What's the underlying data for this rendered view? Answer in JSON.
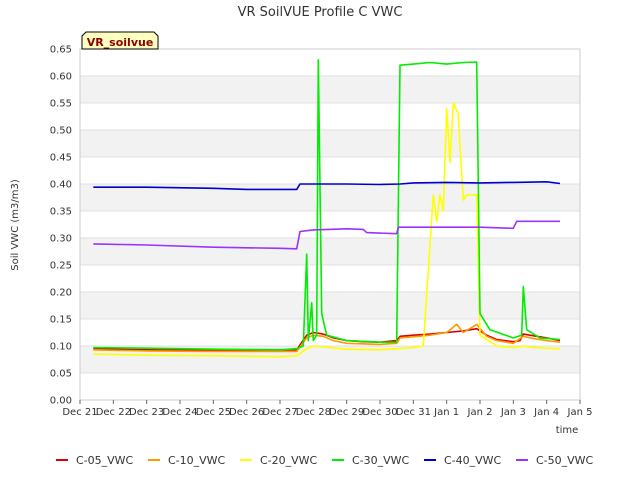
{
  "chart_data": {
    "type": "line",
    "title": "VR SoilVUE Profile C VWC",
    "badge": "VR_soilvue",
    "xlabel": "time",
    "ylabel": "Soil VWC (m3/m3)",
    "ylim": [
      0,
      0.65
    ],
    "xlim": [
      0,
      15
    ],
    "grid": true,
    "legend_position": "bottom",
    "y_ticks": [
      "0.00",
      "0.05",
      "0.10",
      "0.15",
      "0.20",
      "0.25",
      "0.30",
      "0.35",
      "0.40",
      "0.45",
      "0.50",
      "0.55",
      "0.60",
      "0.65"
    ],
    "x_ticks": [
      "Dec 21",
      "Dec 22",
      "Dec 23",
      "Dec 24",
      "Dec 25",
      "Dec 26",
      "Dec 27",
      "Dec 28",
      "Dec 29",
      "Dec 30",
      "Dec 31",
      "Jan 1",
      "Jan 2",
      "Jan 3",
      "Jan 4",
      "Jan 5"
    ],
    "series": [
      {
        "name": "C-05_VWC",
        "color": "#dd0000",
        "points": [
          [
            0.4,
            0.095
          ],
          [
            2,
            0.093
          ],
          [
            4,
            0.092
          ],
          [
            6,
            0.092
          ],
          [
            6.5,
            0.093
          ],
          [
            6.8,
            0.12
          ],
          [
            7.0,
            0.125
          ],
          [
            7.3,
            0.122
          ],
          [
            7.6,
            0.115
          ],
          [
            8,
            0.11
          ],
          [
            8.5,
            0.108
          ],
          [
            9,
            0.107
          ],
          [
            9.5,
            0.11
          ],
          [
            9.6,
            0.118
          ],
          [
            10,
            0.12
          ],
          [
            10.5,
            0.122
          ],
          [
            11,
            0.125
          ],
          [
            11.5,
            0.128
          ],
          [
            11.9,
            0.132
          ],
          [
            12.2,
            0.12
          ],
          [
            12.5,
            0.112
          ],
          [
            13,
            0.108
          ],
          [
            13.2,
            0.11
          ],
          [
            13.3,
            0.122
          ],
          [
            13.5,
            0.12
          ],
          [
            14,
            0.115
          ],
          [
            14.4,
            0.11
          ]
        ]
      },
      {
        "name": "C-10_VWC",
        "color": "#ff9900",
        "points": [
          [
            0.4,
            0.093
          ],
          [
            2,
            0.091
          ],
          [
            4,
            0.09
          ],
          [
            6,
            0.09
          ],
          [
            6.5,
            0.09
          ],
          [
            6.8,
            0.115
          ],
          [
            7.0,
            0.12
          ],
          [
            7.3,
            0.118
          ],
          [
            7.6,
            0.11
          ],
          [
            8,
            0.105
          ],
          [
            9,
            0.103
          ],
          [
            9.5,
            0.105
          ],
          [
            9.6,
            0.115
          ],
          [
            10,
            0.117
          ],
          [
            10.5,
            0.12
          ],
          [
            11,
            0.125
          ],
          [
            11.3,
            0.14
          ],
          [
            11.5,
            0.125
          ],
          [
            11.9,
            0.14
          ],
          [
            12.2,
            0.118
          ],
          [
            12.5,
            0.11
          ],
          [
            13,
            0.105
          ],
          [
            13.3,
            0.118
          ],
          [
            13.5,
            0.115
          ],
          [
            14,
            0.11
          ],
          [
            14.4,
            0.107
          ]
        ]
      },
      {
        "name": "C-20_VWC",
        "color": "#ffff00",
        "points": [
          [
            0.4,
            0.085
          ],
          [
            2,
            0.083
          ],
          [
            4,
            0.082
          ],
          [
            6,
            0.08
          ],
          [
            6.5,
            0.082
          ],
          [
            6.8,
            0.095
          ],
          [
            7.0,
            0.1
          ],
          [
            7.5,
            0.097
          ],
          [
            8,
            0.094
          ],
          [
            9,
            0.093
          ],
          [
            9.5,
            0.095
          ],
          [
            10,
            0.097
          ],
          [
            10.3,
            0.1
          ],
          [
            10.6,
            0.38
          ],
          [
            10.7,
            0.33
          ],
          [
            10.8,
            0.38
          ],
          [
            10.9,
            0.35
          ],
          [
            11.0,
            0.54
          ],
          [
            11.1,
            0.44
          ],
          [
            11.2,
            0.55
          ],
          [
            11.35,
            0.53
          ],
          [
            11.4,
            0.47
          ],
          [
            11.5,
            0.37
          ],
          [
            11.6,
            0.38
          ],
          [
            11.9,
            0.38
          ],
          [
            12.0,
            0.12
          ],
          [
            12.5,
            0.1
          ],
          [
            13,
            0.097
          ],
          [
            13.3,
            0.1
          ],
          [
            13.5,
            0.098
          ],
          [
            14,
            0.096
          ],
          [
            14.4,
            0.095
          ]
        ]
      },
      {
        "name": "C-30_VWC",
        "color": "#00ee00",
        "points": [
          [
            0.4,
            0.097
          ],
          [
            2,
            0.096
          ],
          [
            4,
            0.094
          ],
          [
            6,
            0.093
          ],
          [
            6.5,
            0.095
          ],
          [
            6.7,
            0.1
          ],
          [
            6.8,
            0.27
          ],
          [
            6.85,
            0.11
          ],
          [
            6.95,
            0.18
          ],
          [
            7.0,
            0.11
          ],
          [
            7.1,
            0.12
          ],
          [
            7.15,
            0.63
          ],
          [
            7.25,
            0.16
          ],
          [
            7.4,
            0.12
          ],
          [
            8,
            0.11
          ],
          [
            9,
            0.107
          ],
          [
            9.5,
            0.107
          ],
          [
            9.6,
            0.62
          ],
          [
            10,
            0.622
          ],
          [
            10.5,
            0.625
          ],
          [
            11,
            0.622
          ],
          [
            11.5,
            0.625
          ],
          [
            11.9,
            0.626
          ],
          [
            12.0,
            0.16
          ],
          [
            12.3,
            0.13
          ],
          [
            13,
            0.115
          ],
          [
            13.25,
            0.12
          ],
          [
            13.3,
            0.21
          ],
          [
            13.4,
            0.13
          ],
          [
            13.8,
            0.115
          ],
          [
            14.4,
            0.112
          ]
        ]
      },
      {
        "name": "C-40_VWC",
        "color": "#0000cc",
        "points": [
          [
            0.4,
            0.394
          ],
          [
            2,
            0.394
          ],
          [
            4,
            0.392
          ],
          [
            5,
            0.39
          ],
          [
            6,
            0.39
          ],
          [
            6.5,
            0.39
          ],
          [
            6.6,
            0.4
          ],
          [
            7,
            0.4
          ],
          [
            8,
            0.4
          ],
          [
            9,
            0.399
          ],
          [
            9.6,
            0.4
          ],
          [
            10,
            0.402
          ],
          [
            11,
            0.403
          ],
          [
            12,
            0.402
          ],
          [
            13,
            0.403
          ],
          [
            14,
            0.404
          ],
          [
            14.4,
            0.401
          ]
        ]
      },
      {
        "name": "C-50_VWC",
        "color": "#9933ff",
        "points": [
          [
            0.4,
            0.289
          ],
          [
            2,
            0.287
          ],
          [
            4,
            0.283
          ],
          [
            6,
            0.281
          ],
          [
            6.5,
            0.28
          ],
          [
            6.6,
            0.312
          ],
          [
            7,
            0.315
          ],
          [
            8,
            0.317
          ],
          [
            8.5,
            0.316
          ],
          [
            8.6,
            0.31
          ],
          [
            9.5,
            0.308
          ],
          [
            9.55,
            0.32
          ],
          [
            10,
            0.32
          ],
          [
            11,
            0.32
          ],
          [
            12,
            0.32
          ],
          [
            13,
            0.318
          ],
          [
            13.1,
            0.331
          ],
          [
            13.5,
            0.331
          ],
          [
            14,
            0.331
          ],
          [
            14.4,
            0.331
          ]
        ]
      }
    ]
  }
}
